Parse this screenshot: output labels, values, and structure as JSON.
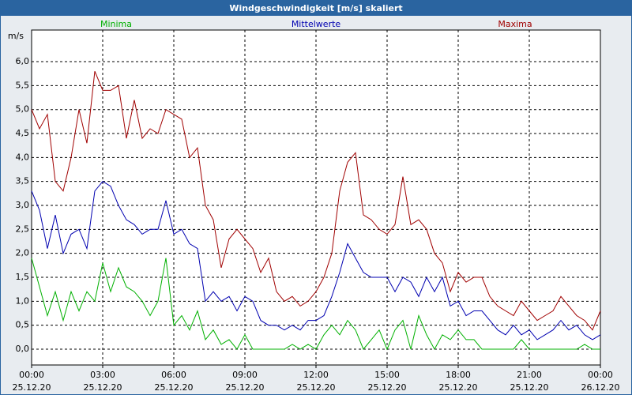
{
  "chart_data": {
    "type": "line",
    "title": "Windgeschwindigkeit [m/s] skaliert",
    "y_label": "m/s",
    "x": [
      0,
      20,
      40,
      60,
      80,
      100,
      120,
      140,
      160,
      180,
      200,
      220,
      240,
      260,
      280,
      300,
      320,
      340,
      360,
      380,
      400,
      420,
      440,
      460,
      480,
      500,
      520,
      540,
      560,
      580,
      600,
      620,
      640,
      660,
      680,
      700,
      720,
      740,
      760,
      780,
      800,
      820,
      840,
      860,
      880,
      900,
      920,
      940,
      960,
      980,
      1000,
      1020,
      1040,
      1060,
      1080,
      1100,
      1120,
      1140,
      1160,
      1180,
      1200,
      1220,
      1240,
      1260,
      1280,
      1300,
      1320,
      1340,
      1360,
      1380,
      1400,
      1420,
      1440
    ],
    "xlim": [
      0,
      1440
    ],
    "xticks": [
      {
        "value": 0,
        "label": [
          "00:00",
          "25.12.20"
        ]
      },
      {
        "value": 180,
        "label": [
          "03:00",
          "25.12.20"
        ]
      },
      {
        "value": 360,
        "label": [
          "06:00",
          "25.12.20"
        ]
      },
      {
        "value": 540,
        "label": [
          "09:00",
          "25.12.20"
        ]
      },
      {
        "value": 720,
        "label": [
          "12:00",
          "25.12.20"
        ]
      },
      {
        "value": 900,
        "label": [
          "15:00",
          "25.12.20"
        ]
      },
      {
        "value": 1080,
        "label": [
          "18:00",
          "25.12.20"
        ]
      },
      {
        "value": 1260,
        "label": [
          "21:00",
          "25.12.20"
        ]
      },
      {
        "value": 1440,
        "label": [
          "00:00",
          "26.12.20"
        ]
      }
    ],
    "ylim": [
      -0.33,
      6.66
    ],
    "yticks": [
      {
        "value": 0,
        "label": "0,0"
      },
      {
        "value": 0.5,
        "label": "0,5"
      },
      {
        "value": 1,
        "label": "1,0"
      },
      {
        "value": 1.5,
        "label": "1,5"
      },
      {
        "value": 2,
        "label": "2,0"
      },
      {
        "value": 2.5,
        "label": "2,5"
      },
      {
        "value": 3,
        "label": "3,0"
      },
      {
        "value": 3.5,
        "label": "3,5"
      },
      {
        "value": 4,
        "label": "4,0"
      },
      {
        "value": 4.5,
        "label": "4,5"
      },
      {
        "value": 5,
        "label": "5,0"
      },
      {
        "value": 5.5,
        "label": "5,5"
      },
      {
        "value": 6,
        "label": "6,0"
      }
    ],
    "grid": true,
    "series": [
      {
        "name": "Minima",
        "color": "#00b000",
        "values": [
          1.9,
          1.3,
          0.7,
          1.2,
          0.6,
          1.2,
          0.8,
          1.2,
          1.0,
          1.8,
          1.2,
          1.7,
          1.3,
          1.2,
          1.0,
          0.7,
          1.0,
          1.9,
          0.5,
          0.7,
          0.4,
          0.8,
          0.2,
          0.4,
          0.1,
          0.2,
          0.0,
          0.3,
          0.0,
          0.0,
          0.0,
          0.0,
          0.0,
          0.1,
          0.0,
          0.1,
          0.0,
          0.3,
          0.5,
          0.3,
          0.6,
          0.4,
          0.0,
          0.2,
          0.4,
          0.0,
          0.4,
          0.6,
          0.0,
          0.7,
          0.3,
          0.0,
          0.3,
          0.2,
          0.4,
          0.2,
          0.2,
          0.0,
          0.0,
          0.0,
          0.0,
          0.0,
          0.2,
          0.0,
          0.0,
          0.0,
          0.0,
          0.0,
          0.0,
          0.0,
          0.1,
          0.0,
          0.0
        ]
      },
      {
        "name": "Mittelwerte",
        "color": "#0000b0",
        "values": [
          3.3,
          2.9,
          2.1,
          2.8,
          2.0,
          2.4,
          2.5,
          2.1,
          3.3,
          3.5,
          3.4,
          3.0,
          2.7,
          2.6,
          2.4,
          2.5,
          2.5,
          3.1,
          2.4,
          2.5,
          2.2,
          2.1,
          1.0,
          1.2,
          1.0,
          1.1,
          0.8,
          1.1,
          1.0,
          0.6,
          0.5,
          0.5,
          0.4,
          0.5,
          0.4,
          0.6,
          0.6,
          0.7,
          1.1,
          1.6,
          2.2,
          1.9,
          1.6,
          1.5,
          1.5,
          1.5,
          1.2,
          1.5,
          1.4,
          1.1,
          1.5,
          1.2,
          1.5,
          0.9,
          1.0,
          0.7,
          0.8,
          0.8,
          0.6,
          0.4,
          0.3,
          0.5,
          0.3,
          0.4,
          0.2,
          0.3,
          0.4,
          0.6,
          0.4,
          0.5,
          0.3,
          0.2,
          0.3
        ]
      },
      {
        "name": "Maxima",
        "color": "#a00000",
        "values": [
          5.0,
          4.6,
          4.9,
          3.5,
          3.3,
          4.0,
          5.0,
          4.3,
          5.8,
          5.4,
          5.4,
          5.5,
          4.4,
          5.2,
          4.4,
          4.6,
          4.5,
          5.0,
          4.9,
          4.8,
          4.0,
          4.2,
          3.0,
          2.7,
          1.7,
          2.3,
          2.5,
          2.3,
          2.1,
          1.6,
          1.9,
          1.2,
          1.0,
          1.1,
          0.9,
          1.0,
          1.2,
          1.5,
          2.0,
          3.3,
          3.9,
          4.1,
          2.8,
          2.7,
          2.5,
          2.4,
          2.6,
          3.6,
          2.6,
          2.7,
          2.5,
          2.0,
          1.8,
          1.2,
          1.6,
          1.4,
          1.5,
          1.5,
          1.1,
          0.9,
          0.8,
          0.7,
          1.0,
          0.8,
          0.6,
          0.7,
          0.8,
          1.1,
          0.9,
          0.7,
          0.6,
          0.4,
          0.8
        ]
      }
    ]
  }
}
